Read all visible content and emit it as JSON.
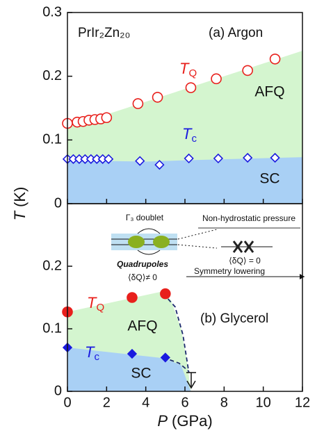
{
  "chart_data": [
    {
      "type": "scatter",
      "title": "PrIr₂Zn₂₀",
      "annotation": "(a) Argon",
      "ylabel": {
        "symbol": "T",
        "unit": "(K)"
      },
      "ylim": [
        0,
        0.3
      ],
      "yticks": [
        0,
        0.1,
        0.2,
        0.3
      ],
      "xlim": [
        0,
        12
      ],
      "regions": [
        {
          "label": "AFQ",
          "color": "#d4f5cf",
          "x": [
            0,
            12
          ],
          "upper": [
            0.12,
            0.24
          ]
        },
        {
          "label": "SC",
          "color": "#a9d0f5",
          "x": [
            0,
            4,
            6,
            12
          ],
          "upper": [
            0.068,
            0.066,
            0.068,
            0.073
          ]
        }
      ],
      "series": [
        {
          "name": "T",
          "subscript": "Q",
          "color": "#e8201c",
          "marker": "circle",
          "filled": false,
          "x": [
            0,
            0.5,
            0.8,
            1.1,
            1.4,
            1.7,
            2.0,
            3.6,
            4.6,
            6.3,
            7.6,
            9.2,
            10.6
          ],
          "values": [
            0.126,
            0.128,
            0.129,
            0.131,
            0.132,
            0.133,
            0.135,
            0.157,
            0.167,
            0.182,
            0.196,
            0.209,
            0.227
          ]
        },
        {
          "name": "T",
          "subscript": "c",
          "color": "#1a1adf",
          "marker": "diamond",
          "filled": false,
          "x": [
            0,
            0.3,
            0.6,
            0.9,
            1.2,
            1.5,
            1.8,
            2.1,
            3.7,
            4.7,
            6.2,
            7.7,
            9.2,
            10.6
          ],
          "values": [
            0.07,
            0.07,
            0.07,
            0.07,
            0.07,
            0.07,
            0.07,
            0.07,
            0.067,
            0.061,
            0.071,
            0.071,
            0.072,
            0.072
          ]
        }
      ]
    },
    {
      "type": "scatter",
      "annotation": "(b) Glycerol",
      "xlabel": {
        "symbol": "P",
        "unit": "(GPa)"
      },
      "ylim": [
        0,
        0.3
      ],
      "yticks": [
        0,
        0.1,
        0.2
      ],
      "xlim": [
        0,
        12
      ],
      "xticks": [
        0,
        2,
        4,
        6,
        8,
        10,
        12
      ],
      "regions": [
        {
          "label": "AFQ",
          "color": "#d4f5cf",
          "x": [
            0,
            4.9,
            5.3,
            5.8,
            6.1,
            6.3
          ],
          "upper": [
            0.127,
            0.16,
            0.145,
            0.1,
            0.05,
            0
          ]
        },
        {
          "label": "SC",
          "color": "#a9d0f5",
          "x": [
            0,
            4.9,
            5.8,
            6.3
          ],
          "upper": [
            0.07,
            0.053,
            0.042,
            0
          ]
        }
      ],
      "dashed": [
        {
          "color": "#1c2a6e",
          "x": [
            4.9,
            5.5,
            5.9,
            6.2
          ],
          "values": [
            0.156,
            0.135,
            0.09,
            0.03
          ]
        },
        {
          "color": "#1c2a6e",
          "x": [
            4.9,
            5.7,
            6.2
          ],
          "values": [
            0.054,
            0.045,
            0.032
          ]
        }
      ],
      "series": [
        {
          "name": "T",
          "subscript": "Q",
          "color": "#e8201c",
          "marker": "circle",
          "filled": true,
          "x": [
            0,
            3.3,
            5.0
          ],
          "values": [
            0.127,
            0.15,
            0.156
          ]
        },
        {
          "name": "T",
          "subscript": "c",
          "color": "#1a1adf",
          "marker": "diamond",
          "filled": true,
          "x": [
            0,
            3.3,
            5.0
          ],
          "values": [
            0.07,
            0.06,
            0.054
          ]
        }
      ],
      "inset": {
        "doublet": "Γ₃ doublet",
        "quadrupoles": "Quadrupoles",
        "nonzero": "⟨δQ⟩≠ 0",
        "pressure": "Non-hydrostatic pressure",
        "zero": "⟨δQ⟩ = 0",
        "lowering": "Symmetry lowering"
      }
    }
  ]
}
